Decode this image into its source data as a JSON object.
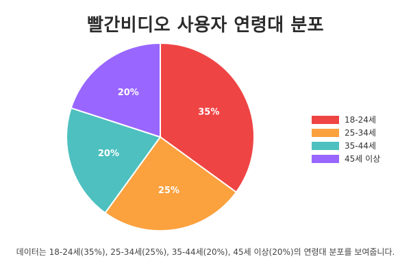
{
  "title": "빨간비디오 사용자 연령대 분포",
  "caption": "데이터는 18-24세(35%), 25-34세(25%), 35-44세(20%), 45세 이상(20%)의 연령대 분포를 보여줍니다.",
  "chart_data": {
    "type": "pie",
    "title": "빨간비디오 사용자 연령대 분포",
    "categories": [
      "18-24세",
      "25-34세",
      "35-44세",
      "45세 이상"
    ],
    "values": [
      35,
      25,
      20,
      20
    ],
    "labels": [
      "35%",
      "25%",
      "20%",
      "20%"
    ],
    "colors": [
      "#ef4444",
      "#fba13e",
      "#4dc0bf",
      "#9966ff"
    ],
    "legend_position": "right"
  }
}
